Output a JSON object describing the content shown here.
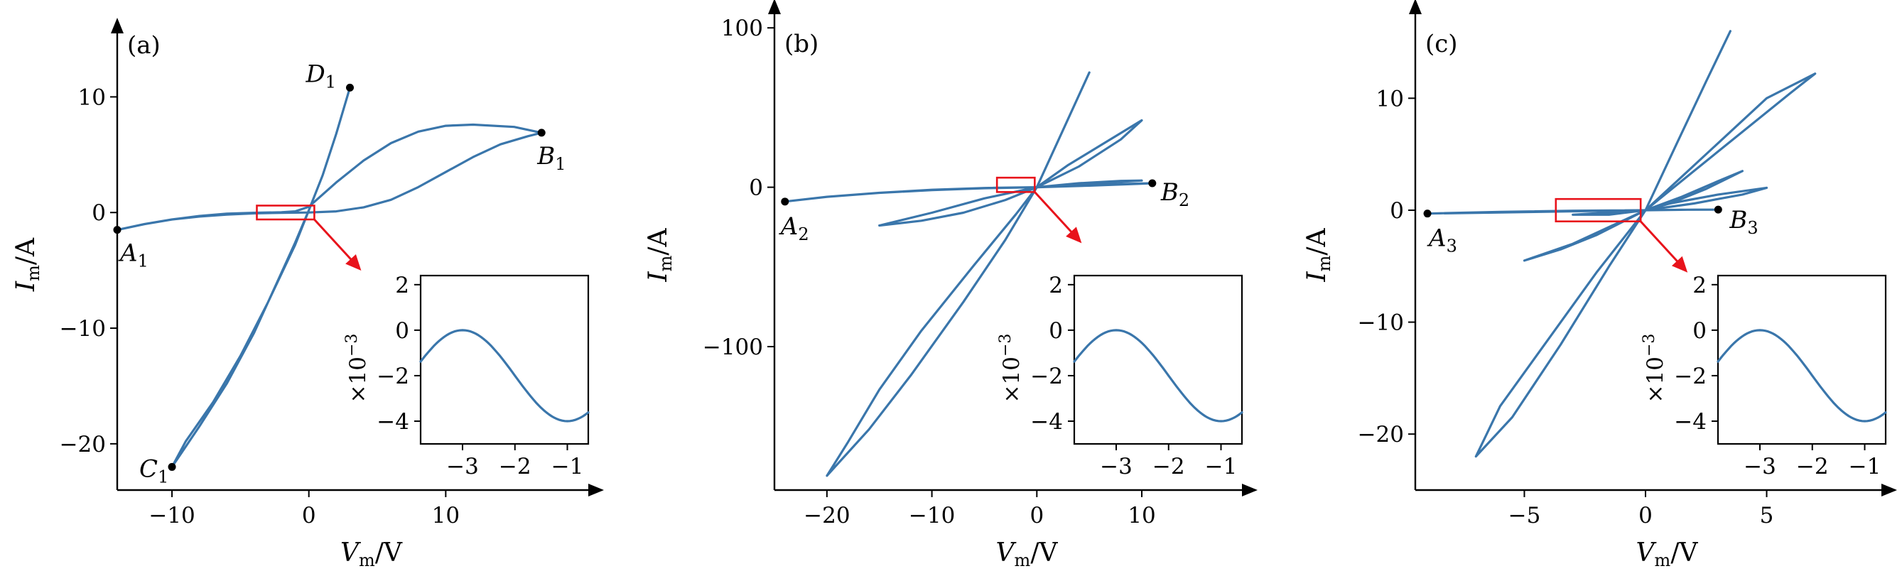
{
  "chart_data": [
    {
      "type": "line",
      "panel_label": "(a)",
      "xlabel": {
        "symbol": "V",
        "sub": "m",
        "unit": "/V"
      },
      "ylabel": {
        "symbol": "I",
        "sub": "m",
        "unit": "/A"
      },
      "xlim": [
        -14,
        20
      ],
      "ylim": [
        -24,
        15
      ],
      "xticks": [
        {
          "v": -10,
          "label": "−10"
        },
        {
          "v": 0,
          "label": "0"
        },
        {
          "v": 10,
          "label": "10"
        }
      ],
      "yticks": [
        {
          "v": -20,
          "label": "−20"
        },
        {
          "v": -10,
          "label": "−10"
        },
        {
          "v": 0,
          "label": "0"
        },
        {
          "v": 10,
          "label": "10"
        }
      ],
      "series": [
        {
          "points": [
            [
              -14,
              -1.5
            ],
            [
              -12,
              -1.0
            ],
            [
              -10,
              -0.6
            ],
            [
              -8,
              -0.35
            ],
            [
              -6,
              -0.18
            ],
            [
              -4,
              -0.07
            ],
            [
              -2,
              -0.02
            ],
            [
              0,
              0
            ],
            [
              2,
              0.1
            ],
            [
              4,
              0.45
            ],
            [
              6,
              1.1
            ],
            [
              8,
              2.2
            ],
            [
              10,
              3.5
            ],
            [
              12,
              4.8
            ],
            [
              14,
              5.9
            ],
            [
              16,
              6.6
            ],
            [
              17,
              6.9
            ],
            [
              15,
              7.4
            ],
            [
              12,
              7.6
            ],
            [
              10,
              7.5
            ],
            [
              8,
              7.0
            ],
            [
              6,
              6.0
            ],
            [
              4,
              4.5
            ],
            [
              2,
              2.6
            ],
            [
              0,
              0.5
            ],
            [
              -1,
              0.1
            ],
            [
              -2,
              0.02
            ],
            [
              -4,
              -0.02
            ],
            [
              -6,
              -0.1
            ],
            [
              -8,
              -0.3
            ],
            [
              -10,
              -0.6
            ],
            [
              -12,
              -1.0
            ],
            [
              -14,
              -1.5
            ]
          ]
        },
        {
          "points": [
            [
              3,
              10.8
            ],
            [
              2,
              6.8
            ],
            [
              1,
              3.2
            ],
            [
              0,
              0.2
            ],
            [
              -1,
              -2.6
            ],
            [
              -2,
              -5.2
            ],
            [
              -4,
              -10.4
            ],
            [
              -6,
              -14.8
            ],
            [
              -8,
              -18.5
            ],
            [
              -10,
              -22.0
            ],
            [
              -9,
              -19.8
            ],
            [
              -7,
              -16.4
            ],
            [
              -5,
              -12.4
            ],
            [
              -3,
              -7.8
            ],
            [
              -1,
              -2.8
            ],
            [
              0,
              0.2
            ],
            [
              1,
              3.2
            ],
            [
              2,
              6.8
            ],
            [
              3,
              10.8
            ]
          ]
        }
      ],
      "points": [
        {
          "name": "A",
          "sub": "1",
          "x": -14,
          "y": -1.5
        },
        {
          "name": "B",
          "sub": "1",
          "x": 17,
          "y": 6.9
        },
        {
          "name": "C",
          "sub": "1",
          "x": -10,
          "y": -22.0
        },
        {
          "name": "D",
          "sub": "1",
          "x": 3,
          "y": 10.8
        }
      ],
      "zoom_box": {
        "x": [
          -3.8,
          0.4
        ],
        "y": [
          -0.6,
          0.6
        ]
      },
      "inset": {
        "multiplier": "×10",
        "exponent": "−3",
        "xlim": [
          -3.8,
          -0.6
        ],
        "ylim": [
          -5.0,
          2.4
        ],
        "xticks": [
          {
            "v": -3,
            "label": "−3"
          },
          {
            "v": -2,
            "label": "−2"
          },
          {
            "v": -1,
            "label": "−1"
          }
        ],
        "yticks": [
          {
            "v": -4,
            "label": "−4"
          },
          {
            "v": -2,
            "label": "−2"
          },
          {
            "v": 0,
            "label": "0"
          },
          {
            "v": 2,
            "label": "2"
          }
        ]
      }
    },
    {
      "type": "line",
      "panel_label": "(b)",
      "xlabel": {
        "symbol": "V",
        "sub": "m",
        "unit": "/V"
      },
      "ylabel": {
        "symbol": "I",
        "sub": "m",
        "unit": "/A"
      },
      "xlim": [
        -25,
        19
      ],
      "ylim": [
        -190,
        105
      ],
      "xticks": [
        {
          "v": -20,
          "label": "−20"
        },
        {
          "v": -10,
          "label": "−10"
        },
        {
          "v": 0,
          "label": "0"
        },
        {
          "v": 10,
          "label": "10"
        }
      ],
      "yticks": [
        {
          "v": -100,
          "label": "−100"
        },
        {
          "v": 0,
          "label": "0"
        },
        {
          "v": 100,
          "label": "100"
        }
      ],
      "series": [
        {
          "points": [
            [
              -24,
              -9
            ],
            [
              -20,
              -6
            ],
            [
              -15,
              -3.5
            ],
            [
              -10,
              -1.8
            ],
            [
              -5,
              -0.6
            ],
            [
              0,
              0
            ],
            [
              5,
              1.0
            ],
            [
              10,
              2.2
            ],
            [
              11,
              2.5
            ],
            [
              8,
              2.0
            ],
            [
              4,
              1.0
            ],
            [
              0,
              0
            ],
            [
              -5,
              -0.5
            ],
            [
              -10,
              -1.6
            ],
            [
              -15,
              -3.5
            ],
            [
              -20,
              -6
            ],
            [
              -24,
              -9
            ]
          ]
        },
        {
          "points": [
            [
              -15,
              -24
            ],
            [
              -10,
              -16
            ],
            [
              -5,
              -7
            ],
            [
              0,
              0
            ],
            [
              3,
              14
            ],
            [
              6,
              26
            ],
            [
              10,
              42
            ],
            [
              8,
              30
            ],
            [
              4,
              13
            ],
            [
              0,
              0
            ],
            [
              -3,
              -8
            ],
            [
              -7,
              -16
            ],
            [
              -11,
              -21
            ],
            [
              -15,
              -24
            ]
          ]
        },
        {
          "points": [
            [
              5,
              72
            ],
            [
              2.5,
              36
            ],
            [
              0,
              0
            ],
            [
              -3,
              -33
            ],
            [
              -7,
              -72
            ],
            [
              -12,
              -118
            ],
            [
              -16,
              -152
            ],
            [
              -20,
              -181
            ],
            [
              -18,
              -160
            ],
            [
              -15,
              -127
            ],
            [
              -11,
              -90
            ],
            [
              -6,
              -49
            ],
            [
              -2,
              -17
            ],
            [
              0,
              0
            ],
            [
              2.5,
              36
            ],
            [
              5,
              72
            ]
          ]
        },
        {
          "points": [
            [
              0,
              0
            ],
            [
              4,
              2.5
            ],
            [
              8,
              4
            ],
            [
              10,
              4.2
            ],
            [
              7,
              3
            ],
            [
              3,
              1.2
            ],
            [
              0,
              0
            ]
          ]
        }
      ],
      "points": [
        {
          "name": "A",
          "sub": "2",
          "x": -24,
          "y": -9
        },
        {
          "name": "B",
          "sub": "2",
          "x": 11,
          "y": 2.5
        }
      ],
      "zoom_box": {
        "x": [
          -3.8,
          -0.2
        ],
        "y": [
          -3,
          6
        ]
      },
      "inset": {
        "multiplier": "×10",
        "exponent": "−3",
        "xlim": [
          -3.8,
          -0.6
        ],
        "ylim": [
          -5.0,
          2.4
        ],
        "xticks": [
          {
            "v": -3,
            "label": "−3"
          },
          {
            "v": -2,
            "label": "−2"
          },
          {
            "v": -1,
            "label": "−1"
          }
        ],
        "yticks": [
          {
            "v": -4,
            "label": "−4"
          },
          {
            "v": -2,
            "label": "−2"
          },
          {
            "v": 0,
            "label": "0"
          },
          {
            "v": 2,
            "label": "2"
          }
        ]
      }
    },
    {
      "type": "line",
      "panel_label": "(c)",
      "xlabel": {
        "symbol": "V",
        "sub": "m",
        "unit": "/V"
      },
      "ylabel": {
        "symbol": "I",
        "sub": "m",
        "unit": "/A"
      },
      "xlim": [
        -9.5,
        9.5
      ],
      "ylim": [
        -25,
        17
      ],
      "xticks": [
        {
          "v": -5,
          "label": "−5"
        },
        {
          "v": 0,
          "label": "0"
        },
        {
          "v": 5,
          "label": "5"
        }
      ],
      "yticks": [
        {
          "v": -20,
          "label": "−20"
        },
        {
          "v": -10,
          "label": "−10"
        },
        {
          "v": 0,
          "label": "0"
        },
        {
          "v": 10,
          "label": "10"
        }
      ],
      "series": [
        {
          "points": [
            [
              -9,
              -0.3
            ],
            [
              -6,
              -0.2
            ],
            [
              -3,
              -0.1
            ],
            [
              0,
              0
            ],
            [
              2,
              0.05
            ],
            [
              3,
              0.05
            ],
            [
              1.5,
              0.04
            ],
            [
              0,
              0
            ],
            [
              -3,
              -0.05
            ],
            [
              -6,
              -0.15
            ],
            [
              -9,
              -0.3
            ]
          ]
        },
        {
          "points": [
            [
              -3,
              -0.4
            ],
            [
              -1.5,
              -0.2
            ],
            [
              0,
              0
            ],
            [
              2,
              0.6
            ],
            [
              4,
              1.4
            ],
            [
              5,
              2.0
            ],
            [
              3,
              1.4
            ],
            [
              1,
              0.6
            ],
            [
              0,
              0
            ],
            [
              -1.5,
              -0.4
            ],
            [
              -3,
              -0.4
            ]
          ]
        },
        {
          "points": [
            [
              -5,
              -4.5
            ],
            [
              -3,
              -3
            ],
            [
              -1.5,
              -1.5
            ],
            [
              0,
              0
            ],
            [
              1.5,
              1.2
            ],
            [
              3,
              2.6
            ],
            [
              4,
              3.5
            ],
            [
              2.5,
              1.9
            ],
            [
              1,
              0.6
            ],
            [
              0,
              0
            ],
            [
              -2,
              -2.2
            ],
            [
              -3.5,
              -3.5
            ],
            [
              -5,
              -4.5
            ]
          ]
        },
        {
          "points": [
            [
              0,
              0
            ],
            [
              2,
              3.5
            ],
            [
              4,
              7.0
            ],
            [
              6,
              10.5
            ],
            [
              7,
              12.2
            ],
            [
              5,
              10.0
            ],
            [
              3,
              6.0
            ],
            [
              1.5,
              3.0
            ],
            [
              0,
              0
            ]
          ]
        },
        {
          "points": [
            [
              3.5,
              16
            ],
            [
              2.5,
              11.5
            ],
            [
              1.3,
              6.0
            ],
            [
              0,
              0
            ],
            [
              -2,
              -5.5
            ],
            [
              -4,
              -11.5
            ],
            [
              -6,
              -17.5
            ],
            [
              -7,
              -22
            ],
            [
              -5.5,
              -18.5
            ],
            [
              -3.5,
              -12.0
            ],
            [
              -1.5,
              -5.0
            ],
            [
              0,
              0
            ],
            [
              1.3,
              6.0
            ],
            [
              2.5,
              11.5
            ],
            [
              3.5,
              16
            ]
          ]
        }
      ],
      "points": [
        {
          "name": "A",
          "sub": "3",
          "x": -9,
          "y": -0.3
        },
        {
          "name": "B",
          "sub": "3",
          "x": 3,
          "y": 0.05
        }
      ],
      "zoom_box": {
        "x": [
          -3.7,
          -0.2
        ],
        "y": [
          -1.0,
          1.0
        ]
      },
      "inset": {
        "multiplier": "×10",
        "exponent": "−3",
        "xlim": [
          -3.8,
          -0.6
        ],
        "ylim": [
          -5.0,
          2.4
        ],
        "xticks": [
          {
            "v": -3,
            "label": "−3"
          },
          {
            "v": -2,
            "label": "−2"
          },
          {
            "v": -1,
            "label": "−1"
          }
        ],
        "yticks": [
          {
            "v": -4,
            "label": "−4"
          },
          {
            "v": -2,
            "label": "−2"
          },
          {
            "v": 0,
            "label": "0"
          },
          {
            "v": 2,
            "label": "2"
          }
        ]
      }
    }
  ],
  "colors": {
    "curve": "#3a76ab",
    "zoom": "#e8131b",
    "axis": "#000000"
  }
}
